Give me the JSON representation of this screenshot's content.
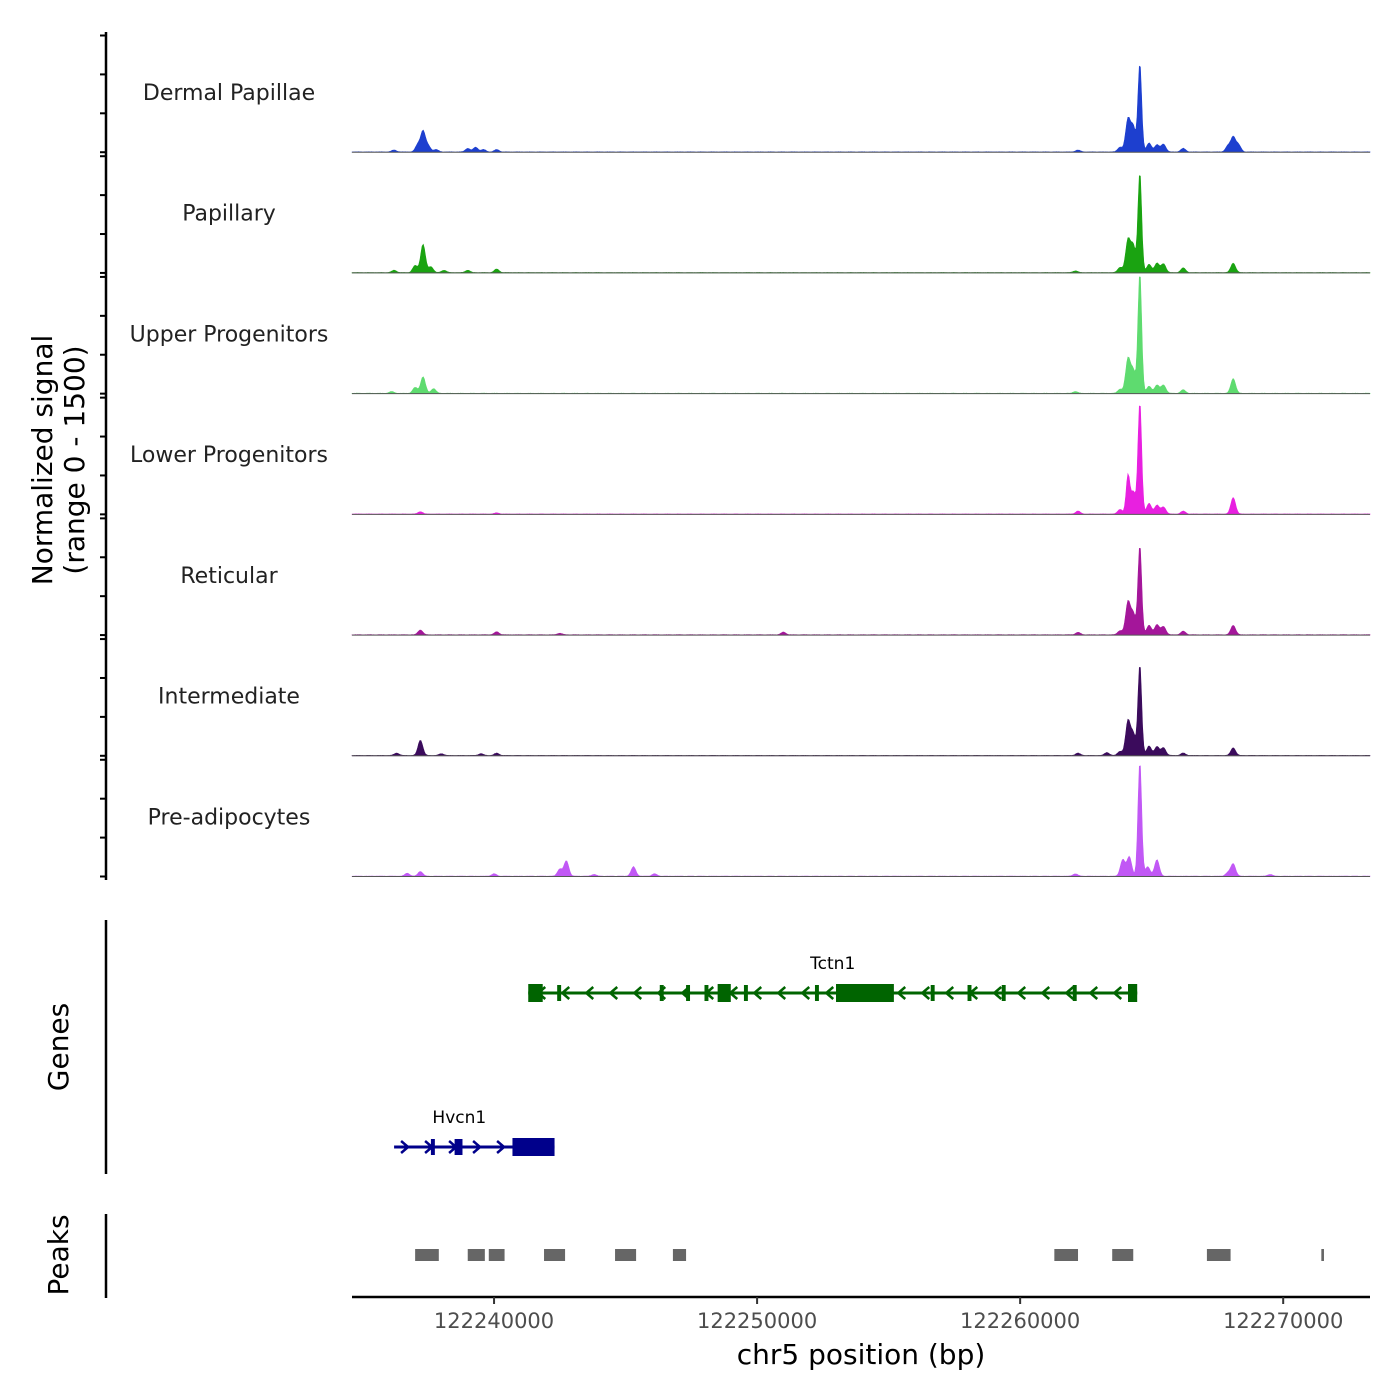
{
  "chart_data": {
    "type": "area",
    "genome": "chr5",
    "xlim": [
      122234600,
      122273300
    ],
    "ylim": [
      0,
      1500
    ],
    "xlabel": "chr5 position (bp)",
    "ylabel": "Normalized signal",
    "ylabel_range": "(range 0 - 1500)",
    "genes_label": "Genes",
    "peaks_label": "Peaks",
    "xticks": [
      {
        "value": 122240000,
        "label": "122240000"
      },
      {
        "value": 122250000,
        "label": "122250000"
      },
      {
        "value": 122260000,
        "label": "122260000"
      },
      {
        "value": 122270000,
        "label": "122270000"
      }
    ],
    "tracks": [
      {
        "name": "Dermal Papillae",
        "color": "#1d3fcf",
        "peaks": [
          [
            122236200,
            30
          ],
          [
            122237100,
            120
          ],
          [
            122237300,
            350
          ],
          [
            122237500,
            100
          ],
          [
            122237800,
            40
          ],
          [
            122239000,
            60
          ],
          [
            122239300,
            80
          ],
          [
            122239600,
            40
          ],
          [
            122240100,
            40
          ],
          [
            122262200,
            30
          ],
          [
            122263800,
            80
          ],
          [
            122264100,
            550
          ],
          [
            122264300,
            420
          ],
          [
            122264550,
            1500
          ],
          [
            122264900,
            150
          ],
          [
            122265200,
            120
          ],
          [
            122265450,
            130
          ],
          [
            122266200,
            60
          ],
          [
            122267900,
            100
          ],
          [
            122268100,
            250
          ],
          [
            122268300,
            120
          ]
        ]
      },
      {
        "name": "Papillary",
        "color": "#1aa311",
        "peaks": [
          [
            122236200,
            40
          ],
          [
            122237000,
            120
          ],
          [
            122237300,
            480
          ],
          [
            122237600,
            100
          ],
          [
            122238100,
            40
          ],
          [
            122239000,
            40
          ],
          [
            122240100,
            60
          ],
          [
            122262100,
            30
          ],
          [
            122263800,
            90
          ],
          [
            122264100,
            550
          ],
          [
            122264300,
            450
          ],
          [
            122264550,
            1700
          ],
          [
            122264900,
            140
          ],
          [
            122265200,
            160
          ],
          [
            122265450,
            150
          ],
          [
            122266200,
            80
          ],
          [
            122268100,
            160
          ]
        ]
      },
      {
        "name": "Upper Progenitors",
        "color": "#5edb6f",
        "peaks": [
          [
            122236100,
            30
          ],
          [
            122237000,
            100
          ],
          [
            122237300,
            280
          ],
          [
            122237700,
            80
          ],
          [
            122262100,
            30
          ],
          [
            122263800,
            70
          ],
          [
            122264100,
            580
          ],
          [
            122264300,
            380
          ],
          [
            122264550,
            2050
          ],
          [
            122264900,
            120
          ],
          [
            122265200,
            140
          ],
          [
            122265450,
            140
          ],
          [
            122266200,
            60
          ],
          [
            122268100,
            250
          ]
        ]
      },
      {
        "name": "Lower Progenitors",
        "color": "#e820e0",
        "peaks": [
          [
            122237200,
            40
          ],
          [
            122240100,
            20
          ],
          [
            122262200,
            50
          ],
          [
            122263800,
            80
          ],
          [
            122264100,
            650
          ],
          [
            122264300,
            380
          ],
          [
            122264550,
            1900
          ],
          [
            122264900,
            180
          ],
          [
            122265200,
            150
          ],
          [
            122265450,
            120
          ],
          [
            122266200,
            50
          ],
          [
            122268100,
            280
          ]
        ]
      },
      {
        "name": "Reticular",
        "color": "#a4169a",
        "peaks": [
          [
            122237200,
            80
          ],
          [
            122240100,
            50
          ],
          [
            122242500,
            25
          ],
          [
            122251000,
            45
          ],
          [
            122262200,
            40
          ],
          [
            122263800,
            70
          ],
          [
            122264100,
            550
          ],
          [
            122264300,
            350
          ],
          [
            122264550,
            1520
          ],
          [
            122264900,
            160
          ],
          [
            122265200,
            170
          ],
          [
            122265450,
            140
          ],
          [
            122266200,
            60
          ],
          [
            122268100,
            160
          ]
        ]
      },
      {
        "name": "Intermediate",
        "color": "#3b0b5c",
        "peaks": [
          [
            122236300,
            40
          ],
          [
            122237200,
            260
          ],
          [
            122238000,
            30
          ],
          [
            122239500,
            30
          ],
          [
            122240100,
            40
          ],
          [
            122262200,
            40
          ],
          [
            122263300,
            50
          ],
          [
            122263800,
            70
          ],
          [
            122264100,
            580
          ],
          [
            122264300,
            360
          ],
          [
            122264550,
            1550
          ],
          [
            122264900,
            160
          ],
          [
            122265200,
            150
          ],
          [
            122265450,
            130
          ],
          [
            122266200,
            40
          ],
          [
            122268100,
            130
          ]
        ]
      },
      {
        "name": "Pre-adipocytes",
        "color": "#c158f5",
        "peaks": [
          [
            122236700,
            50
          ],
          [
            122237200,
            80
          ],
          [
            122240000,
            40
          ],
          [
            122242500,
            120
          ],
          [
            122242750,
            260
          ],
          [
            122243800,
            30
          ],
          [
            122245300,
            160
          ],
          [
            122246100,
            40
          ],
          [
            122262100,
            40
          ],
          [
            122263900,
            280
          ],
          [
            122264150,
            330
          ],
          [
            122264550,
            1950
          ],
          [
            122264850,
            160
          ],
          [
            122265200,
            280
          ],
          [
            122267900,
            60
          ],
          [
            122268100,
            210
          ],
          [
            122269500,
            30
          ]
        ]
      }
    ],
    "genes": [
      {
        "name": "Tctn1",
        "strand": "-",
        "color": "#006400",
        "start": 122241300,
        "end": 122264450,
        "exons": [
          [
            122241300,
            122241850
          ],
          [
            122242400,
            122242550
          ],
          [
            122246300,
            122246450
          ],
          [
            122247300,
            122247450
          ],
          [
            122248000,
            122248150
          ],
          [
            122248500,
            122249000
          ],
          [
            122249500,
            122249650
          ],
          [
            122252200,
            122252350
          ],
          [
            122253000,
            122255200
          ],
          [
            122256600,
            122256750
          ],
          [
            122258000,
            122258150
          ],
          [
            122259300,
            122259450
          ],
          [
            122262000,
            122262150
          ],
          [
            122264100,
            122264450
          ]
        ]
      },
      {
        "name": "Hvcn1",
        "strand": "+",
        "color": "#00008b",
        "start": 122236200,
        "end": 122242300,
        "exons": [
          [
            122237600,
            122237750
          ],
          [
            122238500,
            122238800
          ],
          [
            122240700,
            122242300
          ]
        ]
      }
    ],
    "peak_regions": [
      [
        122237000,
        122237900
      ],
      [
        122239000,
        122239650
      ],
      [
        122239800,
        122240400
      ],
      [
        122241900,
        122242700
      ],
      [
        122244600,
        122245400
      ],
      [
        122246800,
        122247300
      ],
      [
        122261300,
        122262200
      ],
      [
        122263500,
        122264300
      ],
      [
        122267100,
        122268000
      ],
      [
        122271450,
        122271550
      ]
    ]
  }
}
